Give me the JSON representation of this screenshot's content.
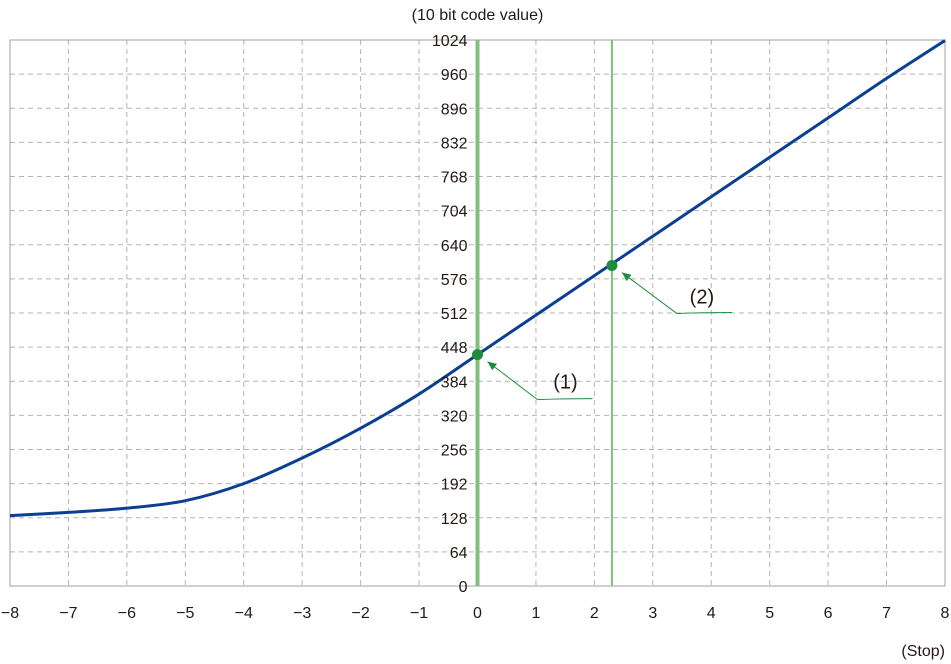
{
  "chart_data": {
    "type": "line",
    "x": [
      -8,
      -7,
      -6,
      -5,
      -4,
      -3,
      -2,
      -1,
      0,
      1,
      2,
      3,
      4,
      5,
      6,
      7,
      8
    ],
    "series": [
      {
        "values": [
          132,
          138,
          146,
          160,
          192,
          240,
          296,
          360,
          434,
          508,
          582,
          656,
          730,
          804,
          878,
          952,
          1023
        ]
      }
    ],
    "ylabel": "(10 bit code value)",
    "xlabel": "(Stop)",
    "xlim": [
      -8,
      8
    ],
    "ylim": [
      0,
      1024
    ],
    "xticks": [
      "−8",
      "−7",
      "−6",
      "−5",
      "−4",
      "−3",
      "−2",
      "−1",
      "0",
      "1",
      "2",
      "3",
      "4",
      "5",
      "6",
      "7",
      "8"
    ],
    "yticks": [
      "0",
      "64",
      "128",
      "192",
      "256",
      "320",
      "384",
      "448",
      "512",
      "576",
      "640",
      "704",
      "768",
      "832",
      "896",
      "960",
      "1024"
    ],
    "grid": true,
    "vertical_markers": [
      0,
      2.3
    ],
    "points": [
      {
        "label": "(1)",
        "x": 0,
        "y": 434
      },
      {
        "label": "(2)",
        "x": 2.3,
        "y": 601
      }
    ],
    "colors": {
      "curve": "#0b3f91",
      "marker_line": "#7fc07a",
      "point": "#1e8c3a",
      "callout": "#1e8c3a",
      "grid": "#b4b4b4",
      "frame": "#a0a0a0",
      "text": "#231815"
    }
  }
}
